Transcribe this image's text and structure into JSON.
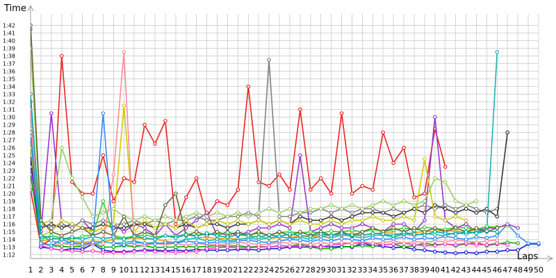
{
  "chart_data": {
    "type": "line",
    "title": "",
    "xlabel": "Laps",
    "ylabel": "Time",
    "ylim": [
      71.5,
      103.5
    ],
    "xlim": [
      1,
      50
    ],
    "grid": true,
    "legend": "none",
    "y_ticks": [
      "1:12",
      "1:13",
      "1:14",
      "1:15",
      "1:16",
      "1:17",
      "1:18",
      "1:19",
      "1:20",
      "1:21",
      "1:22",
      "1:23",
      "1:24",
      "1:25",
      "1:26",
      "1:27",
      "1:28",
      "1:29",
      "1:30",
      "1:31",
      "1:32",
      "1:33",
      "1:34",
      "1:35",
      "1:36",
      "1:37",
      "1:38",
      "1:39",
      "1:40",
      "1:41",
      "1:42"
    ],
    "x_ticks": [
      "1",
      "2",
      "3",
      "4",
      "5",
      "6",
      "7",
      "8",
      "9",
      "10",
      "11",
      "12",
      "13",
      "14",
      "15",
      "16",
      "17",
      "18",
      "19",
      "20",
      "21",
      "22",
      "23",
      "24",
      "25",
      "26",
      "27",
      "28",
      "29",
      "30",
      "31",
      "32",
      "33",
      "34",
      "35",
      "36",
      "37",
      "38",
      "39",
      "40",
      "41",
      "42",
      "43",
      "44",
      "45",
      "46",
      "47",
      "48",
      "49",
      "50"
    ],
    "series": [
      {
        "color": "#e8231f",
        "values": [
          80.5,
          73.2,
          74,
          98,
          81.5,
          80,
          80,
          85,
          79,
          82,
          81.5,
          89,
          86.5,
          89.5,
          76,
          79.5,
          82,
          77,
          79,
          78.5,
          80.5,
          94,
          81.5,
          81,
          82.5,
          80.5,
          91,
          80.5,
          82,
          80,
          90.5,
          80,
          81,
          80.5,
          88,
          84,
          86,
          79.5,
          80,
          88.5,
          83.5,
          null,
          null,
          null,
          null,
          null,
          null,
          null,
          null,
          null
        ]
      },
      {
        "color": "#1a1ad0",
        "values": [
          84.5,
          73,
          72.8,
          72.6,
          72.8,
          72.7,
          73.4,
          72.6,
          72.4,
          72.4,
          72.5,
          72.6,
          72.6,
          72.5,
          72.6,
          72.5,
          72.7,
          72.6,
          72.6,
          72.6,
          72.7,
          72.7,
          72.6,
          72.8,
          72.8,
          73,
          73,
          73,
          73.1,
          73,
          73.1,
          73,
          73.5,
          73.2,
          73.1,
          72.9,
          73,
          72.7,
          72.6,
          72.4,
          72.3,
          72.2,
          72.3,
          72.2,
          72.4,
          72.4,
          72.6,
          72.6,
          73.4,
          73.4
        ]
      },
      {
        "color": "#00aa00",
        "values": [
          82.5,
          73.6,
          73.2,
          73.1,
          73,
          73.1,
          73.5,
          73,
          73,
          73.2,
          73.1,
          73.2,
          72.9,
          73,
          73,
          73.1,
          73,
          73.1,
          73.2,
          73.1,
          73.2,
          73,
          73.1,
          73,
          73.2,
          73.1,
          73.4,
          73,
          72.8,
          72.8,
          73,
          73.1,
          73.2,
          73.1,
          73.3,
          73.4,
          73,
          73.2,
          73.5,
          73.3,
          73.4,
          73.2,
          73.4,
          73.6,
          73.2,
          73.4,
          73.6,
          73.5,
          null,
          null
        ]
      },
      {
        "color": "#ff33cc",
        "values": [
          88.5,
          73.2,
          72.8,
          72.6,
          72.5,
          72.4,
          72.5,
          72.3,
          72.3,
          72.3,
          72.4,
          72.5,
          72.4,
          72.4,
          72.3,
          72.4,
          72.4,
          72.8,
          72.9,
          73,
          72.9,
          72.9,
          73,
          73,
          73.2,
          73.1,
          73.2,
          73.2,
          73,
          73.3,
          73.4,
          73.5,
          73.5,
          73.5,
          73.3,
          73.4,
          73.5,
          73.3,
          73.2,
          73.2,
          73.4,
          73.3,
          73.5,
          73.3,
          73.3,
          73.5,
          73.3,
          null,
          null,
          null
        ]
      },
      {
        "color": "#ff9900",
        "values": [
          87,
          73.8,
          74,
          74.2,
          73.8,
          73.6,
          73.8,
          73.7,
          74,
          74.1,
          74.2,
          74.1,
          74,
          73.8,
          73.6,
          74,
          74.2,
          74.3,
          74.1,
          74.2,
          74,
          74.2,
          74.4,
          74.1,
          74.3,
          74.2,
          74.5,
          74.3,
          74.4,
          74.6,
          74.5,
          74.8,
          74.6,
          74.7,
          74.9,
          74.8,
          74.6,
          74.9,
          75,
          75.1,
          75.2,
          75.1,
          74.9,
          75.3,
          75.4,
          75.6,
          75.8,
          null,
          null,
          null
        ]
      },
      {
        "color": "#9933cc",
        "values": [
          83.5,
          75,
          90.5,
          76,
          75.5,
          76.5,
          75,
          75.5,
          76,
          75,
          76,
          75.5,
          74.5,
          76,
          74.5,
          75.5,
          76.5,
          77.5,
          74.5,
          75,
          74.5,
          75,
          75.5,
          75.5,
          76,
          75.5,
          85,
          75,
          75.5,
          76,
          75.5,
          75.5,
          76,
          75.5,
          75,
          76,
          76,
          75,
          76.5,
          90,
          76.5,
          75.5,
          76,
          75,
          75.5,
          75.5,
          76,
          75.5,
          null,
          null
        ]
      },
      {
        "color": "#808080",
        "values": [
          101.5,
          76,
          75.5,
          76,
          75.5,
          76.5,
          76,
          76.5,
          76,
          76,
          76.5,
          76,
          76.5,
          76,
          76.5,
          76.5,
          77,
          76.5,
          76.5,
          77,
          77,
          77.5,
          77,
          97.5,
          77,
          77,
          77.5,
          77.5,
          78,
          77.5,
          78,
          77.5,
          78,
          78,
          77.5,
          78,
          77.5,
          78,
          78.5,
          78,
          78.5,
          78,
          78.5,
          78,
          77.5,
          78,
          null,
          null,
          null,
          null
        ]
      },
      {
        "color": "#333333",
        "values": [
          85,
          75.5,
          76,
          75.5,
          76,
          75.5,
          75.5,
          76,
          75.5,
          75.5,
          76,
          76,
          75.5,
          76,
          75.5,
          76,
          75.5,
          76,
          76,
          75.5,
          76,
          76,
          76.5,
          76,
          76.5,
          76,
          77,
          76.5,
          76.5,
          77,
          76.5,
          77,
          77.5,
          77.5,
          77.5,
          77,
          77.5,
          78,
          77.5,
          78.5,
          78,
          77.5,
          78,
          77.5,
          78,
          77,
          88,
          null,
          null,
          null
        ]
      },
      {
        "color": "#1ab3b3",
        "values": [
          92,
          74.5,
          73.8,
          73.5,
          73.6,
          73.4,
          73.5,
          73.7,
          73.5,
          73.6,
          73.8,
          73.5,
          73.6,
          73.4,
          73.6,
          74,
          74.2,
          73.8,
          74,
          73.8,
          74,
          74.2,
          74,
          74.2,
          74.4,
          74.1,
          74.3,
          74,
          74.4,
          74.2,
          74.6,
          74.4,
          74.2,
          74.5,
          74.6,
          74.3,
          74.7,
          74.5,
          74.8,
          74.6,
          74.5,
          74.9,
          74.7,
          75,
          75.2,
          98.5,
          null,
          null,
          null,
          null
        ]
      },
      {
        "color": "#cccc00",
        "values": [
          86,
          74.5,
          75,
          76.5,
          76,
          75.5,
          75,
          75.5,
          76,
          91.5,
          75,
          76.5,
          75.5,
          76,
          75.5,
          76.5,
          75.5,
          76,
          76.5,
          76,
          76.5,
          76,
          76.5,
          76,
          76.5,
          76,
          76.5,
          76,
          76,
          76.5,
          76,
          76.5,
          76.5,
          77,
          76.5,
          76.5,
          77,
          76.5,
          84.5,
          77,
          76.5,
          77,
          76.5,
          null,
          null,
          null,
          null,
          null,
          null,
          null
        ]
      },
      {
        "color": "#ff8899",
        "values": [
          91,
          73.4,
          73.2,
          73.5,
          73.3,
          73.2,
          73.4,
          73.5,
          82.5,
          98.5,
          73.3,
          73.2,
          73.5,
          73.3,
          73.5,
          73.2,
          73.5,
          73.3,
          73.4,
          73.3,
          73.6,
          73.5,
          73.3,
          73.4,
          73.6,
          73.5,
          73.5,
          73.3,
          73.6,
          73.4,
          73.6,
          73.5,
          73.7,
          73.5,
          73.6,
          73.8,
          73.5,
          73.7,
          73.6,
          73.8,
          73.7,
          73.9,
          73.8,
          73.6,
          73.8,
          73.9,
          null,
          null,
          null,
          null
        ]
      },
      {
        "color": "#33cc33",
        "values": [
          88,
          74,
          74.5,
          74.2,
          74,
          74.4,
          74.6,
          79,
          74.5,
          74.2,
          74.4,
          74.6,
          74.3,
          74.5,
          74.4,
          74.7,
          74.5,
          74.8,
          74.6,
          74.9,
          74.7,
          74.6,
          74.8,
          74.6,
          74.9,
          75,
          74.8,
          75,
          74.8,
          75.1,
          75,
          75.2,
          75,
          75.3,
          75.1,
          75.2,
          75.5,
          75.2,
          75.6,
          75.4,
          75.3,
          75.6,
          75.5,
          75.3,
          75.7,
          75.6,
          null,
          null,
          null,
          null
        ]
      },
      {
        "color": "#3388ff",
        "values": [
          87.5,
          73.5,
          73.2,
          74,
          73.5,
          73.4,
          73.6,
          90.5,
          73.5,
          73.3,
          73.6,
          73.5,
          73.4,
          73.6,
          73.5,
          73.8,
          73.6,
          73.5,
          73.7,
          73.6,
          73.8,
          73.9,
          73.7,
          73.6,
          73.8,
          74,
          73.9,
          73.7,
          74,
          73.8,
          74.1,
          74,
          73.8,
          74.2,
          74,
          74.1,
          74.3,
          74,
          74.2,
          74.1,
          74.4,
          74.2,
          74,
          74.3,
          74.2,
          74.5,
          76,
          74.5,
          73.5,
          73.5
        ]
      },
      {
        "color": "#99cc66",
        "values": [
          99,
          76,
          76.5,
          86,
          82,
          79.5,
          77,
          77.5,
          78,
          77,
          76.5,
          77,
          76.5,
          77,
          76.5,
          77,
          77.5,
          77,
          77.5,
          77,
          77.5,
          77,
          77.5,
          78,
          77.5,
          78,
          77.5,
          78,
          78,
          78.5,
          78,
          78.5,
          78,
          78.5,
          79,
          78.5,
          79,
          78.5,
          79,
          82,
          81.5,
          79,
          78.5,
          79,
          null,
          null,
          null,
          null,
          null,
          null
        ]
      },
      {
        "color": "#666633",
        "values": [
          102,
          76.5,
          75,
          74.5,
          75,
          75.5,
          74.5,
          75,
          74.5,
          77,
          74.5,
          75,
          74.5,
          78.5,
          80,
          74.5,
          75,
          74.5,
          75,
          74.5,
          75,
          74.5,
          75,
          74.5,
          75,
          74.5,
          75,
          74.5,
          75,
          74.5,
          75,
          74.5,
          75,
          75.5,
          75,
          75.5,
          75,
          75.5,
          75,
          75.5,
          75,
          75.5,
          75,
          75.5,
          75,
          75.5,
          null,
          null,
          null,
          null
        ]
      },
      {
        "color": "#00aaaa",
        "values": [
          93,
          74.5,
          74.2,
          74,
          74.3,
          74,
          74.4,
          74.1,
          74.3,
          74,
          74.4,
          74.2,
          74,
          74.5,
          74.2,
          74.6,
          74.4,
          74.8,
          74.5,
          74.3,
          74.6,
          74.5,
          74.3,
          74.6,
          74.4,
          74.7,
          74.5,
          74.4,
          74.7,
          74.5,
          74.8,
          74.6,
          74.5,
          74.8,
          74.7,
          74.5,
          74.9,
          74.7,
          74.6,
          75,
          74.8,
          74.7,
          75,
          74.8,
          75.1,
          75,
          null,
          null,
          null,
          null
        ]
      }
    ]
  }
}
